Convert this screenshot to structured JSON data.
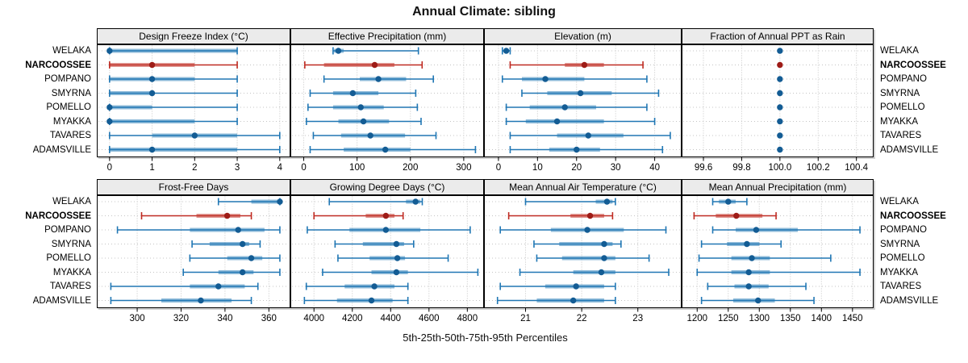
{
  "title": "Annual Climate: sibling",
  "xlabel": "5th-25th-50th-75th-95th Percentiles",
  "sites": [
    "WELAKA",
    "NARCOOSSEE",
    "POMPANO",
    "SMYRNA",
    "POMELLO",
    "MYAKKA",
    "TAVARES",
    "ADAMSVILLE"
  ],
  "highlight_site": "NARCOOSSEE",
  "colors": {
    "series_blue": "#2077b4",
    "series_blue_dot": "#135c94",
    "series_red": "#bf2b22",
    "series_red_dot": "#9e1c17",
    "band_opacity": 0.5,
    "gridline": "#c4c4c4",
    "strip_bg": "#ebebeb",
    "panel_border": "#000000"
  },
  "chart_data": {
    "type": "dotplot-percentiles",
    "percentiles": [
      5,
      25,
      50,
      75,
      95
    ],
    "panels": [
      {
        "title": "Design Freeze Index (°C)",
        "row": 0,
        "col": 0,
        "xlim": [
          -0.3,
          4.25
        ],
        "xticks": [
          0,
          1,
          2,
          3,
          4
        ],
        "xtick_labels": [
          "0",
          "1",
          "2",
          "3",
          "4"
        ],
        "values": [
          [
            0,
            0,
            0,
            3,
            3
          ],
          [
            0,
            0,
            1,
            2,
            3
          ],
          [
            0,
            0,
            1,
            2,
            3
          ],
          [
            0,
            0,
            1,
            1,
            3
          ],
          [
            0,
            0,
            0,
            1,
            3
          ],
          [
            0,
            0,
            0,
            2,
            3
          ],
          [
            0,
            1,
            2,
            3,
            4
          ],
          [
            0,
            0,
            1,
            3,
            4
          ]
        ]
      },
      {
        "title": "Effective Precipitation (mm)",
        "row": 0,
        "col": 1,
        "xlim": [
          -25,
          338
        ],
        "xticks": [
          0,
          100,
          200,
          300
        ],
        "xtick_labels": [
          "0",
          "100",
          "200",
          "300"
        ],
        "values": [
          [
            55,
            57,
            65,
            75,
            215
          ],
          [
            2,
            38,
            133,
            170,
            222
          ],
          [
            38,
            105,
            140,
            192,
            243
          ],
          [
            12,
            55,
            92,
            140,
            210
          ],
          [
            8,
            55,
            107,
            150,
            213
          ],
          [
            5,
            65,
            112,
            160,
            220
          ],
          [
            18,
            70,
            125,
            190,
            248
          ],
          [
            12,
            75,
            153,
            200,
            322
          ]
        ]
      },
      {
        "title": "Elevation (m)",
        "row": 0,
        "col": 2,
        "xlim": [
          -3.7,
          46.9
        ],
        "xticks": [
          0,
          10,
          20,
          30,
          40
        ],
        "xtick_labels": [
          "0",
          "10",
          "20",
          "30",
          "40"
        ],
        "values": [
          [
            1,
            1.5,
            2,
            2.5,
            3
          ],
          [
            3,
            17,
            22,
            27,
            37
          ],
          [
            1,
            6,
            12,
            22,
            38
          ],
          [
            6,
            12.5,
            21,
            29,
            41
          ],
          [
            2,
            8,
            17,
            25,
            38
          ],
          [
            2,
            7,
            15,
            27,
            40
          ],
          [
            3,
            15,
            23,
            32,
            44
          ],
          [
            3,
            13,
            20,
            26,
            42
          ]
        ]
      },
      {
        "title": "Fraction of Annual PPT as Rain",
        "row": 0,
        "col": 3,
        "xlim": [
          99.486,
          100.49
        ],
        "xticks": [
          99.6,
          99.8,
          100.0,
          100.2,
          100.4
        ],
        "xtick_labels": [
          "99.6",
          "99.8",
          "100.0",
          "100.2",
          "100.4"
        ],
        "values": [
          [
            100,
            100,
            100,
            100,
            100
          ],
          [
            100,
            100,
            100,
            100,
            100
          ],
          [
            100,
            100,
            100,
            100,
            100
          ],
          [
            100,
            100,
            100,
            100,
            100
          ],
          [
            100,
            100,
            100,
            100,
            100
          ],
          [
            100,
            100,
            100,
            100,
            100
          ],
          [
            100,
            100,
            100,
            100,
            100
          ],
          [
            100,
            100,
            100,
            100,
            100
          ]
        ]
      },
      {
        "title": "Frost-Free Days",
        "row": 1,
        "col": 0,
        "xlim": [
          281.6,
          369.8
        ],
        "xticks": [
          300,
          320,
          340,
          360
        ],
        "xtick_labels": [
          "300",
          "320",
          "340",
          "360"
        ],
        "values": [
          [
            337,
            352,
            365,
            365,
            365
          ],
          [
            302,
            327,
            341,
            347,
            352
          ],
          [
            291,
            324,
            346,
            358,
            365
          ],
          [
            325,
            333,
            348,
            351,
            356
          ],
          [
            324,
            341,
            352,
            357,
            365
          ],
          [
            321,
            337,
            348,
            353,
            365
          ],
          [
            288,
            324,
            337,
            349,
            355
          ],
          [
            288,
            311,
            329,
            343,
            352
          ]
        ]
      },
      {
        "title": "Growing Degree Days (°C)",
        "row": 1,
        "col": 1,
        "xlim": [
          3877,
          4887
        ],
        "xticks": [
          4000,
          4200,
          4400,
          4600,
          4800
        ],
        "xtick_labels": [
          "4000",
          "4200",
          "4400",
          "4600",
          "4800"
        ],
        "values": [
          [
            4080,
            4480,
            4530,
            4555,
            4565
          ],
          [
            4000,
            4270,
            4375,
            4420,
            4465
          ],
          [
            3965,
            4185,
            4375,
            4555,
            4815
          ],
          [
            4110,
            4255,
            4430,
            4470,
            4520
          ],
          [
            4125,
            4290,
            4435,
            4475,
            4700
          ],
          [
            4045,
            4300,
            4430,
            4490,
            4855
          ],
          [
            3960,
            4160,
            4315,
            4420,
            4490
          ],
          [
            3950,
            4120,
            4300,
            4410,
            4490
          ]
        ]
      },
      {
        "title": "Mean Annual Air Temperature (°C)",
        "row": 1,
        "col": 2,
        "xlim": [
          20.26,
          23.78
        ],
        "xticks": [
          21,
          22,
          23
        ],
        "xtick_labels": [
          "21",
          "22",
          "23"
        ],
        "values": [
          [
            21.0,
            22.25,
            22.45,
            22.55,
            22.6
          ],
          [
            20.7,
            21.8,
            22.15,
            22.4,
            22.55
          ],
          [
            20.55,
            21.45,
            22.1,
            22.75,
            23.5
          ],
          [
            21.15,
            21.6,
            22.4,
            22.55,
            22.7
          ],
          [
            21.2,
            21.65,
            22.4,
            22.6,
            23.2
          ],
          [
            20.9,
            21.85,
            22.35,
            22.6,
            23.55
          ],
          [
            20.55,
            21.35,
            21.9,
            22.4,
            22.6
          ],
          [
            20.5,
            21.2,
            21.85,
            22.4,
            22.6
          ]
        ]
      },
      {
        "title": "Mean Annual Precipitation (mm)",
        "row": 1,
        "col": 3,
        "xlim": [
          1175,
          1484
        ],
        "xticks": [
          1200,
          1250,
          1300,
          1350,
          1400,
          1450
        ],
        "xtick_labels": [
          "1200",
          "1250",
          "1300",
          "1350",
          "1400",
          "1450"
        ],
        "values": [
          [
            1225,
            1235,
            1250,
            1262,
            1280
          ],
          [
            1195,
            1230,
            1263,
            1305,
            1327
          ],
          [
            1225,
            1262,
            1295,
            1362,
            1462
          ],
          [
            1207,
            1248,
            1280,
            1300,
            1335
          ],
          [
            1203,
            1255,
            1288,
            1317,
            1415
          ],
          [
            1200,
            1255,
            1283,
            1317,
            1462
          ],
          [
            1217,
            1260,
            1283,
            1315,
            1375
          ],
          [
            1207,
            1258,
            1298,
            1325,
            1388
          ]
        ]
      }
    ]
  }
}
